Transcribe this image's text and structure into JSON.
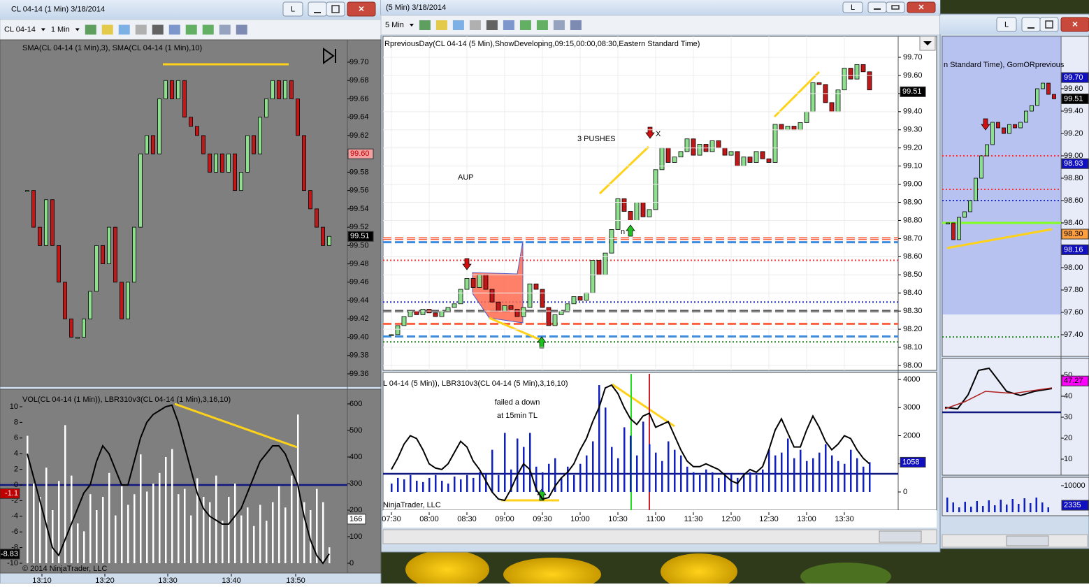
{
  "windows": [
    {
      "title": "CL 04-14 (1 Min)  3/18/2014",
      "button": "L",
      "instrument": "CL 04-14",
      "interval": "1 Min",
      "price_label": "SMA(CL 04-14 (1 Min),3), SMA(CL 04-14 (1 Min),10)",
      "price_ticks": [
        {
          "value": 99.7,
          "label": "99.70"
        },
        99.68,
        99.66,
        99.64,
        99.62,
        {
          "value": 99.6,
          "label": "99.60"
        },
        99.58,
        99.56,
        99.54,
        99.52,
        {
          "value": 99.5,
          "label": "99.50"
        },
        99.48,
        99.46,
        99.44,
        99.42,
        {
          "value": 99.4,
          "label": "99.40"
        },
        99.38,
        99.36
      ],
      "price_markers": [
        {
          "value": 99.6,
          "label": "99.60",
          "color": "#f4a0a0"
        },
        {
          "value": 99.51,
          "color": "#000000"
        }
      ],
      "closes": [
        99.56,
        99.52,
        99.5,
        99.55,
        99.5,
        99.46,
        99.42,
        99.4,
        99.4,
        99.42,
        99.45,
        99.5,
        99.48,
        99.52,
        99.46,
        99.42,
        99.46,
        99.52,
        99.6,
        99.62,
        99.6,
        99.66,
        99.68,
        99.66,
        99.68,
        99.64,
        99.63,
        99.62,
        99.6,
        99.58,
        99.6,
        99.58,
        99.6,
        99.56,
        99.58,
        99.62,
        99.6,
        99.64,
        99.66,
        99.68,
        99.66,
        99.68,
        99.66,
        99.62,
        99.56,
        99.54,
        99.52,
        99.5,
        99.51
      ],
      "osc_label": "VOL(CL 04-14 (1 Min)), LBR310v3(CL 04-14 (1 Min),3,16,10)",
      "osc_ticks": [
        10,
        8,
        6,
        4,
        2,
        0,
        -2,
        -4,
        -6,
        -8,
        -10
      ],
      "vol_ticks": [
        600,
        500,
        400,
        300,
        200,
        100,
        0
      ],
      "osc": [
        4,
        1,
        -2,
        -5,
        -8,
        -9,
        -7,
        -5,
        -3,
        -1,
        0,
        3,
        5,
        4,
        2,
        0,
        0,
        3,
        6,
        8,
        9,
        9.5,
        10,
        10.2,
        8,
        5,
        2,
        -1,
        -3,
        -4,
        -4.5,
        -5,
        -5,
        -4,
        -3,
        -1,
        1,
        3,
        4,
        5,
        5,
        4,
        2,
        0,
        -4,
        -7,
        -9,
        -10,
        -8.8
      ],
      "volume": [
        480,
        300,
        250,
        360,
        200,
        310,
        520,
        330,
        150,
        120,
        260,
        200,
        250,
        340,
        180,
        290,
        220,
        260,
        410,
        270,
        300,
        340,
        400,
        430,
        260,
        280,
        180,
        320,
        250,
        230,
        330,
        160,
        250,
        300,
        180,
        210,
        140,
        220,
        160,
        230,
        290,
        210,
        330,
        560,
        230,
        200,
        280,
        230,
        60
      ],
      "osc_markers": [
        {
          "value": -1.1,
          "color": "#c00000"
        },
        {
          "value": -8.83,
          "color": "#000000"
        }
      ],
      "vol_markers": [
        {
          "value": 166,
          "color": "#ffffff"
        }
      ],
      "times": [
        "13:10",
        "13:20",
        "13:30",
        "13:40",
        "13:50"
      ],
      "footer": "© 2014 NinjaTrader, LLC"
    },
    {
      "title": "(5 Min)  3/18/2014",
      "button": "L",
      "interval": "5 Min",
      "price_label": "RpreviousDay(CL 04-14 (5 Min),ShowDeveloping,09:15,00:00,08:30,Eastern Standard Time)",
      "price_ticks": [
        {
          "value": 99.7,
          "label": "99.70"
        },
        {
          "value": 99.6,
          "label": "99.60"
        },
        {
          "value": 99.5,
          "label": "99.50"
        },
        {
          "value": 99.4,
          "label": "99.40"
        },
        {
          "value": 99.3,
          "label": "99.30"
        },
        {
          "value": 99.2,
          "label": "99.20"
        },
        {
          "value": 99.1,
          "label": "99.10"
        },
        {
          "value": 99,
          "label": "99.00"
        },
        {
          "value": 98.9,
          "label": "98.90"
        },
        {
          "value": 98.8,
          "label": "98.80"
        },
        {
          "value": 98.7,
          "label": "98.70"
        },
        {
          "value": 98.6,
          "label": "98.60"
        },
        {
          "value": 98.5,
          "label": "98.50"
        },
        {
          "value": 98.4,
          "label": "98.40"
        },
        {
          "value": 98.3,
          "label": "98.30"
        },
        {
          "value": 98.2,
          "label": "98.20"
        },
        {
          "value": 98.1,
          "label": "98.10"
        },
        {
          "value": 98,
          "label": "98.00"
        }
      ],
      "price_markers": [
        {
          "value": 99.51,
          "color": "#000000"
        }
      ],
      "closes": [
        98.17,
        98.22,
        98.27,
        98.3,
        98.28,
        98.31,
        98.29,
        98.27,
        98.3,
        98.32,
        98.34,
        98.42,
        98.48,
        98.43,
        98.5,
        98.42,
        98.35,
        98.3,
        98.33,
        98.31,
        98.27,
        98.32,
        98.45,
        98.42,
        98.32,
        98.22,
        98.28,
        98.3,
        98.34,
        98.38,
        98.36,
        98.4,
        98.58,
        98.5,
        98.62,
        98.75,
        98.92,
        98.85,
        98.8,
        98.9,
        98.82,
        98.86,
        99.08,
        99.2,
        99.12,
        99.15,
        99.18,
        99.25,
        99.16,
        99.22,
        99.18,
        99.24,
        99.2,
        99.16,
        99.18,
        99.1,
        99.15,
        99.12,
        99.18,
        99.14,
        99.12,
        99.33,
        99.3,
        99.32,
        99.3,
        99.34,
        99.4,
        99.56,
        99.55,
        99.45,
        99.4,
        99.52,
        99.64,
        99.58,
        99.66,
        99.62,
        99.52
      ],
      "levels": [
        {
          "value": 98.7,
          "color": "#ff6040",
          "style": "dashed",
          "width": 4
        },
        {
          "value": 98.68,
          "color": "#3c8ce0",
          "style": "dashed",
          "width": 3
        },
        {
          "value": 98.58,
          "color": "#ff3030",
          "style": "dotted",
          "width": 2
        },
        {
          "value": 98.35,
          "color": "#2030d0",
          "style": "dotted",
          "width": 2
        },
        {
          "value": 98.3,
          "color": "#000000",
          "style": "dashed",
          "width": 3
        },
        {
          "value": 98.23,
          "color": "#ff6040",
          "style": "dashed",
          "width": 3
        },
        {
          "value": 98.16,
          "color": "#3c8ce0",
          "style": "dashed",
          "width": 3
        },
        {
          "value": 98.13,
          "color": "#208020",
          "style": "dotted",
          "width": 2
        }
      ],
      "annotations": [
        "AUP",
        "3 PUSHES",
        "X",
        "failed a down",
        "at 15min TL",
        "n"
      ],
      "osc_label": "L 04-14 (5 Min)), LBR310v3(CL 04-14 (5 Min),3,16,10)",
      "vol_ticks": [
        4000,
        3000,
        2000,
        1000,
        0
      ],
      "osc": [
        800,
        1200,
        1700,
        2000,
        1900,
        1500,
        1000,
        850,
        800,
        1000,
        1400,
        1800,
        1600,
        1100,
        800,
        400,
        0,
        -250,
        -300,
        100,
        600,
        1000,
        800,
        100,
        -250,
        -200,
        200,
        500,
        700,
        1000,
        1500,
        1900,
        2500,
        3000,
        3700,
        3800,
        3500,
        3000,
        2600,
        2400,
        2700,
        2800,
        2300,
        2400,
        2500,
        2000,
        1500,
        1100,
        900,
        900,
        1000,
        900,
        800,
        600,
        400,
        300,
        600,
        800,
        700,
        900,
        1500,
        2200,
        2600,
        2100,
        1600,
        1600,
        2200,
        2700,
        2300,
        1800,
        1500,
        1700,
        2000,
        1900,
        1500,
        1200,
        1000
      ],
      "volume": [
        300,
        500,
        450,
        600,
        400,
        350,
        500,
        600,
        400,
        300,
        550,
        450,
        600,
        500,
        700,
        650,
        1500,
        600,
        2100,
        800,
        1900,
        1600,
        2100,
        900,
        700,
        1000,
        1200,
        500,
        900,
        600,
        1000,
        1300,
        1800,
        3800,
        3000,
        1600,
        1200,
        2300,
        2000,
        1300,
        2500,
        1700,
        1400,
        1100,
        1800,
        1500,
        1300,
        900,
        700,
        600,
        800,
        700,
        500,
        600,
        650,
        500,
        600,
        700,
        600,
        800,
        1500,
        1300,
        1400,
        1900,
        1200,
        1500,
        1100,
        1200,
        1400,
        1700,
        1300,
        1100,
        1000,
        1500,
        1200,
        900,
        1058
      ],
      "vol_markers": [
        {
          "value": 1058,
          "color": "#1010c0"
        }
      ],
      "times": [
        "07:30",
        "08:00",
        "08:30",
        "09:00",
        "09:30",
        "10:00",
        "10:30",
        "11:00",
        "11:30",
        "12:00",
        "12:30",
        "13:00",
        "13:30"
      ],
      "footer": "NinjaTrader, LLC"
    },
    {
      "button": "L",
      "price_label": "n Standard Time), GomORprevious",
      "price_ticks": [
        {
          "value": 99.6,
          "label": "99.60"
        },
        {
          "value": 99.4,
          "label": "99.40"
        },
        {
          "value": 99.2,
          "label": "99.20"
        },
        {
          "value": 99,
          "label": "99.00"
        },
        {
          "value": 98.8,
          "label": "98.80"
        },
        {
          "value": 98.6,
          "label": "98.60"
        },
        {
          "value": 98.4,
          "label": "98.40"
        },
        {
          "value": 98,
          "label": "98.00"
        },
        {
          "value": 97.8,
          "label": "97.80"
        },
        {
          "value": 97.6,
          "label": "97.60"
        },
        {
          "value": 97.4,
          "label": "97.40"
        }
      ],
      "price_markers": [
        {
          "value": 99.7,
          "label": "99.70",
          "color": "#1010c0"
        },
        {
          "value": 99.51,
          "color": "#000000"
        },
        {
          "value": 98.93,
          "color": "#1010c0"
        },
        {
          "value": 98.3,
          "label": "98.30",
          "color": "#ffa040"
        },
        {
          "value": 98.16,
          "color": "#1010c0"
        }
      ],
      "closes": [
        98.4,
        98.25,
        98.45,
        98.5,
        98.6,
        98.8,
        99,
        99.1,
        99.3,
        99.25,
        99.2,
        99.28,
        99.25,
        99.3,
        99.4,
        99.45,
        99.6,
        99.65,
        99.55,
        99.51
      ],
      "levels": [
        {
          "value": 99,
          "color": "#ff3030",
          "style": "dotted",
          "width": 2
        },
        {
          "value": 98.7,
          "color": "#ff3030",
          "style": "dotted",
          "width": 2
        },
        {
          "value": 98.6,
          "color": "#2030d0",
          "style": "dotted",
          "width": 2
        },
        {
          "value": 98.4,
          "color": "#80ff20",
          "style": "solid",
          "width": 3
        },
        {
          "value": 97.38,
          "color": "#208020",
          "style": "dotted",
          "width": 2
        }
      ],
      "osc_ticks": [
        50,
        40,
        30,
        20,
        10
      ],
      "osc_markers": [
        {
          "value": 47.27,
          "color": "#ff00ff"
        }
      ],
      "vol_ticks": [
        10000
      ],
      "vol_markers": [
        {
          "value": 2335,
          "color": "#1010c0"
        }
      ]
    }
  ]
}
